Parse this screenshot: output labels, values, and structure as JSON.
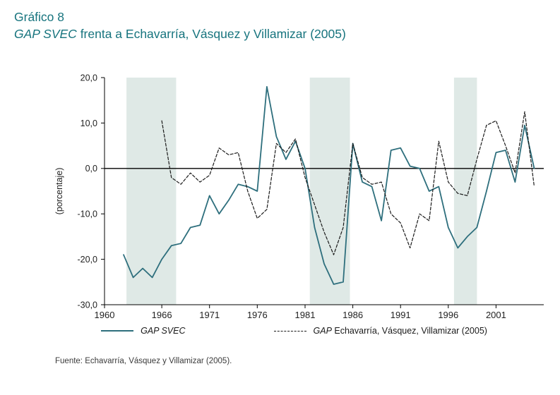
{
  "title": {
    "line1": "Gráfico 8",
    "line2_italic": "GAP SVEC",
    "line2_rest": " frenta a Echavarría, Vásquez y Villamizar (2005)"
  },
  "source": "Fuente: Echavarría, Vásquez y Villamizar (2005).",
  "colors": {
    "title": "#17747e",
    "solid_line": "#2e6f7d",
    "dashed_line": "#1a1a1a",
    "band": "#dfe9e6",
    "axis": "#000000",
    "tick_text": "#222222"
  },
  "legend": {
    "item1": {
      "italic": "GAP SVEC",
      "rest": ""
    },
    "item2": {
      "italic": "GAP",
      "rest": " Echavarría, Vásquez, Villamizar (2005)"
    }
  },
  "chart_data": {
    "type": "line",
    "title": "GAP SVEC frenta a Echavarría, Vásquez y Villamizar (2005)",
    "xlabel": "",
    "ylabel": "(porcentaje)",
    "ylim": [
      -30,
      20
    ],
    "yticks": [
      20,
      10,
      0,
      -10,
      -20,
      -30
    ],
    "ytick_labels": [
      "20,0",
      "10,0",
      "0,0",
      "-10,0",
      "-20,0",
      "-30,0"
    ],
    "xlim": [
      1960,
      2006
    ],
    "xticks": [
      1960,
      1966,
      1971,
      1976,
      1981,
      1986,
      1991,
      1996,
      2001
    ],
    "zero_line": 0,
    "grid": false,
    "legend_position": "bottom",
    "shaded_bands": [
      {
        "from": 1962.3,
        "to": 1967.5
      },
      {
        "from": 1981.5,
        "to": 1985.7
      },
      {
        "from": 1996.6,
        "to": 1999.0
      }
    ],
    "series": [
      {
        "name": "GAP SVEC",
        "style": "solid",
        "x": [
          1962,
          1963,
          1964,
          1965,
          1966,
          1967,
          1968,
          1969,
          1970,
          1971,
          1972,
          1973,
          1974,
          1975,
          1976,
          1977,
          1978,
          1979,
          1980,
          1981,
          1982,
          1983,
          1984,
          1985,
          1986,
          1987,
          1988,
          1989,
          1990,
          1991,
          1992,
          1993,
          1994,
          1995,
          1996,
          1997,
          1998,
          1999,
          2000,
          2001,
          2002,
          2003,
          2004,
          2005
        ],
        "y": [
          -19,
          -24,
          -22,
          -24,
          -20,
          -17,
          -16.5,
          -13,
          -12.5,
          -6,
          -10,
          -7,
          -3.5,
          -4,
          -5,
          18,
          7,
          2,
          6,
          0,
          -13,
          -21,
          -25.5,
          -25,
          5.5,
          -3,
          -4,
          -11.5,
          4,
          4.5,
          0.5,
          0,
          -5,
          -4,
          -13,
          -17.5,
          -15,
          -13,
          -5,
          3.5,
          4,
          -3,
          9.5,
          0
        ]
      },
      {
        "name": "GAP Echavarría, Vásquez, Villamizar (2005)",
        "style": "dashed",
        "x": [
          1966,
          1967,
          1968,
          1969,
          1970,
          1971,
          1972,
          1973,
          1974,
          1975,
          1976,
          1977,
          1978,
          1979,
          1980,
          1981,
          1982,
          1983,
          1984,
          1985,
          1986,
          1987,
          1988,
          1989,
          1990,
          1991,
          1992,
          1993,
          1994,
          1995,
          1996,
          1997,
          1998,
          1999,
          2000,
          2001,
          2002,
          2003,
          2004,
          2005
        ],
        "y": [
          10.5,
          -2,
          -3.5,
          -1,
          -3,
          -1.5,
          4.5,
          3,
          3.5,
          -5,
          -11,
          -9,
          5.5,
          3.5,
          6.5,
          -2,
          -8,
          -14,
          -19,
          -13,
          5.5,
          -2,
          -3.5,
          -3,
          -10,
          -12,
          -17.5,
          -10,
          -11.5,
          6,
          -3,
          -5.5,
          -6,
          2,
          9.5,
          10.5,
          5,
          -1,
          12.5,
          -4
        ]
      }
    ]
  }
}
